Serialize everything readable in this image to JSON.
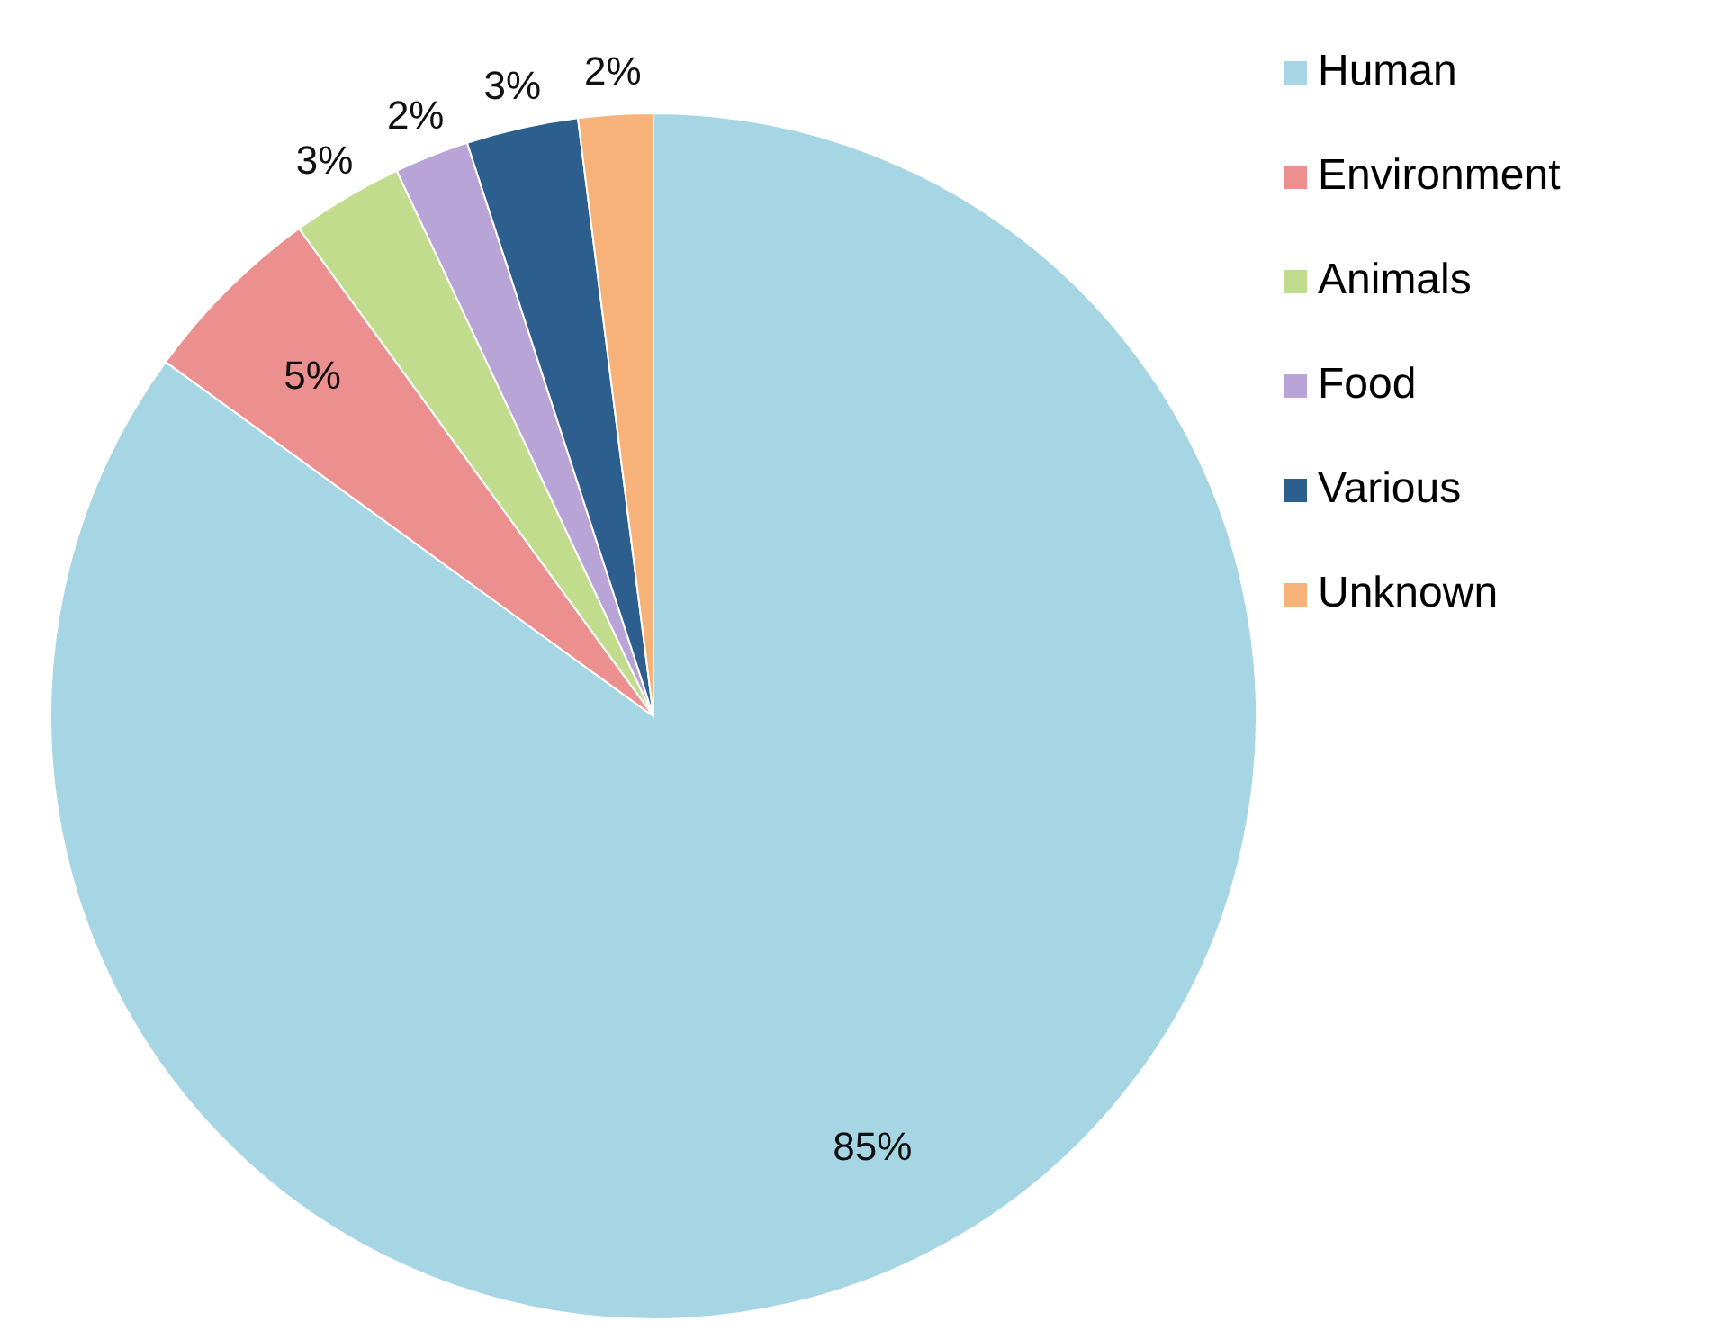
{
  "chart_data": {
    "type": "pie",
    "categories": [
      "Human",
      "Environment",
      "Animals",
      "Food",
      "Various",
      "Unknown"
    ],
    "values": [
      85,
      5,
      3,
      2,
      3,
      2
    ],
    "colors": [
      "#a6d6e3",
      "#eb8f8f",
      "#c2dc8e",
      "#b9a4d8",
      "#2d5f8e",
      "#f7b27a"
    ],
    "value_labels": [
      "85%",
      "5%",
      "3%",
      "2%",
      "3%",
      "2%"
    ],
    "legend": "top right"
  }
}
